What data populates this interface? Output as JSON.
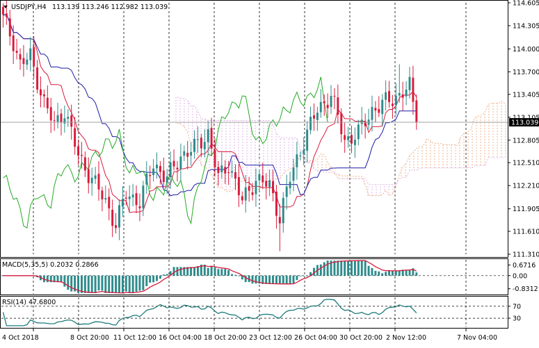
{
  "header": {
    "symbol_timeframe": "USDJPY,H4",
    "ohlc": "113.139 113.246 112.982 113.039"
  },
  "current_price_label": "113.039",
  "colors": {
    "bull": "#2e8b8b",
    "bear": "#d81b3c",
    "tenkan": "#d81b3c",
    "kijun": "#1a1aa8",
    "chikou": "#22aa22",
    "cloud_bull": "#e8a070",
    "cloud_bear": "#d8a0e0",
    "macd_hist": "#2e8b8b",
    "macd_signal": "#d81b3c",
    "rsi": "#1f7a7a"
  },
  "chart_data": [
    {
      "type": "candlestick",
      "name": "price",
      "title": "USDJPY,H4",
      "ylim": [
        111.31,
        114.605
      ],
      "y_ticks": [
        "114.605",
        "114.305",
        "114.000",
        "113.700",
        "113.405",
        "113.105",
        "112.805",
        "112.510",
        "112.210",
        "111.905",
        "111.610",
        "111.310"
      ],
      "x_ticks": [
        "4 Oct 2018",
        "8 Oct 20:00",
        "11 Oct 12:00",
        "16 Oct 04:00",
        "18 Oct 20:00",
        "23 Oct 12:00",
        "26 Oct 04:00",
        "30 Oct 20:00",
        "2 Nov 12:00",
        "7 Nov 04:00"
      ],
      "close_anchor_points": [
        [
          0,
          114.4
        ],
        [
          3,
          114.1
        ],
        [
          5,
          113.8
        ],
        [
          8,
          113.9
        ],
        [
          12,
          113.3
        ],
        [
          15,
          113.0
        ],
        [
          18,
          113.2
        ],
        [
          22,
          112.6
        ],
        [
          26,
          112.3
        ],
        [
          30,
          112.0
        ],
        [
          33,
          111.7
        ],
        [
          36,
          112.1
        ],
        [
          40,
          112.0
        ],
        [
          44,
          112.5
        ],
        [
          48,
          112.3
        ],
        [
          52,
          112.6
        ],
        [
          56,
          112.7
        ],
        [
          60,
          112.9
        ],
        [
          63,
          112.3
        ],
        [
          66,
          112.5
        ],
        [
          70,
          112.0
        ],
        [
          74,
          112.3
        ],
        [
          78,
          112.2
        ],
        [
          81,
          111.8
        ],
        [
          84,
          112.3
        ],
        [
          88,
          112.8
        ],
        [
          92,
          113.2
        ],
        [
          96,
          113.4
        ],
        [
          100,
          112.8
        ],
        [
          104,
          112.9
        ],
        [
          108,
          113.2
        ],
        [
          112,
          113.3
        ],
        [
          116,
          113.4
        ],
        [
          119,
          113.5
        ],
        [
          121,
          113.04
        ]
      ],
      "series": [
        {
          "name": "Tenkan-sen"
        },
        {
          "name": "Kijun-sen"
        },
        {
          "name": "Chikou span"
        },
        {
          "name": "Senkou span A"
        },
        {
          "name": "Senkou span B"
        }
      ],
      "last_close": 113.039,
      "kijun_last": 113.05,
      "cloud_ahead_range": [
        112.4,
        113.3
      ]
    },
    {
      "type": "bar",
      "name": "macd",
      "title": "MACD(5,35,5) 0.2032 0.2866",
      "ylim": [
        -1.15,
        1.0
      ],
      "y_ticks": [
        "0.6716",
        "0.00",
        "-0.8312"
      ],
      "last_histogram": 0.2032,
      "last_signal": 0.2866
    },
    {
      "type": "line",
      "name": "rsi",
      "title": "RSI(14) 47.6800",
      "ylim": [
        0,
        100
      ],
      "y_ticks": [
        "70",
        "30"
      ],
      "levels": [
        70,
        30
      ],
      "last": 47.68
    }
  ]
}
